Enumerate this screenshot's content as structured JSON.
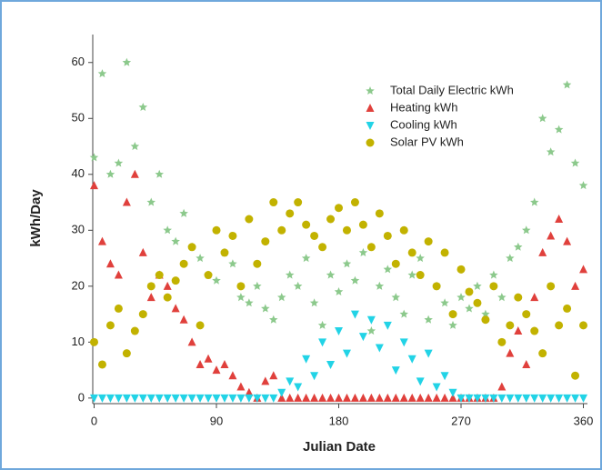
{
  "chart_data": {
    "type": "scatter",
    "xlabel": "Julian Date",
    "ylabel": "kWh/Day",
    "xlim": [
      -1,
      363
    ],
    "ylim": [
      -1,
      65
    ],
    "xticks": [
      0,
      90,
      180,
      270,
      360
    ],
    "yticks": [
      0,
      10,
      20,
      30,
      40,
      50,
      60
    ],
    "legend": "upper right",
    "x": [
      0,
      6,
      12,
      18,
      24,
      30,
      36,
      42,
      48,
      54,
      60,
      66,
      72,
      78,
      84,
      90,
      96,
      102,
      108,
      114,
      120,
      126,
      132,
      138,
      144,
      150,
      156,
      162,
      168,
      174,
      180,
      186,
      192,
      198,
      204,
      210,
      216,
      222,
      228,
      234,
      240,
      246,
      252,
      258,
      264,
      270,
      276,
      282,
      288,
      294,
      300,
      306,
      312,
      318,
      324,
      330,
      336,
      342,
      348,
      354,
      360
    ],
    "series": [
      {
        "name": "Total Daily Electric kWh",
        "color": "#8cc98c",
        "marker": "star",
        "values": [
          43,
          58,
          40,
          42,
          60,
          45,
          52,
          35,
          40,
          30,
          28,
          33,
          27,
          25,
          22,
          21,
          26,
          24,
          18,
          17,
          20,
          16,
          14,
          18,
          22,
          20,
          25,
          17,
          13,
          22,
          19,
          24,
          21,
          26,
          12,
          20,
          23,
          18,
          15,
          22,
          25,
          14,
          20,
          17,
          13,
          18,
          16,
          20,
          15,
          22,
          18,
          25,
          27,
          30,
          35,
          50,
          44,
          48,
          56,
          42,
          38
        ]
      },
      {
        "name": "Heating kWh",
        "color": "#e0403c",
        "marker": "triangle-up",
        "values": [
          38,
          28,
          24,
          22,
          35,
          40,
          26,
          18,
          22,
          20,
          16,
          14,
          10,
          6,
          7,
          5,
          6,
          4,
          2,
          1,
          0,
          3,
          4,
          0,
          0,
          0,
          0,
          0,
          0,
          0,
          0,
          0,
          0,
          0,
          0,
          0,
          0,
          0,
          0,
          0,
          0,
          0,
          0,
          0,
          0,
          0,
          0,
          0,
          0,
          0,
          2,
          8,
          12,
          6,
          18,
          26,
          29,
          32,
          28,
          20,
          23
        ]
      },
      {
        "name": "Cooling kWh",
        "color": "#22d3e6",
        "marker": "triangle-down",
        "values": [
          0,
          0,
          0,
          0,
          0,
          0,
          0,
          0,
          0,
          0,
          0,
          0,
          0,
          0,
          0,
          0,
          0,
          0,
          0,
          0,
          0,
          0,
          0,
          1,
          3,
          2,
          7,
          4,
          10,
          6,
          12,
          8,
          15,
          11,
          14,
          9,
          13,
          5,
          10,
          7,
          3,
          8,
          2,
          4,
          1,
          0,
          0,
          0,
          0,
          0,
          0,
          0,
          0,
          0,
          0,
          0,
          0,
          0,
          0,
          0,
          0
        ]
      },
      {
        "name": "Solar PV kWh",
        "color": "#c2b200",
        "marker": "circle",
        "values": [
          10,
          6,
          13,
          16,
          8,
          12,
          15,
          20,
          22,
          18,
          21,
          24,
          27,
          13,
          22,
          30,
          26,
          29,
          20,
          32,
          24,
          28,
          35,
          30,
          33,
          35,
          31,
          29,
          27,
          32,
          34,
          30,
          35,
          31,
          27,
          33,
          29,
          24,
          30,
          26,
          22,
          28,
          20,
          26,
          15,
          23,
          19,
          17,
          14,
          20,
          10,
          13,
          18,
          15,
          12,
          8,
          20,
          13,
          16,
          4,
          13
        ]
      }
    ]
  }
}
